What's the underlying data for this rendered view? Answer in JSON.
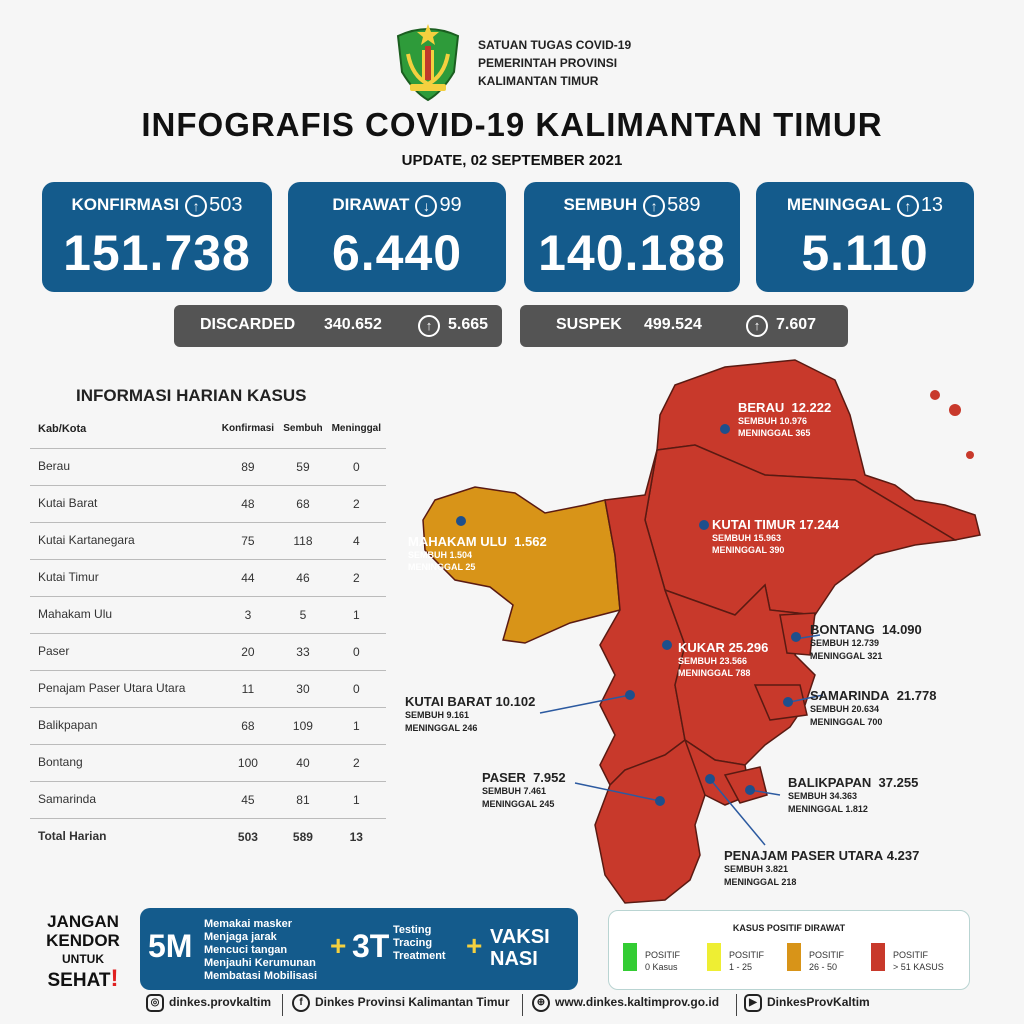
{
  "header": {
    "org_line1": "SATUAN TUGAS COVID-19",
    "org_line2": "PEMERINTAH PROVINSI",
    "org_line3": "KALIMANTAN TIMUR",
    "title": "INFOGRAFIS COVID-19 KALIMANTAN TIMUR",
    "update": "UPDATE, 02 SEPTEMBER 2021"
  },
  "stats": [
    {
      "label": "KONFIRMASI",
      "arrow": "up",
      "delta": "503",
      "value": "151.738"
    },
    {
      "label": "DIRAWAT",
      "arrow": "down",
      "delta": "99",
      "value": "6.440"
    },
    {
      "label": "SEMBUH",
      "arrow": "up",
      "delta": "589",
      "value": "140.188"
    },
    {
      "label": "MENINGGAL",
      "arrow": "up",
      "delta": "13",
      "value": "5.110"
    }
  ],
  "secondary": [
    {
      "label": "DISCARDED",
      "value": "340.652",
      "delta": "5.665"
    },
    {
      "label": "SUSPEK",
      "value": "499.524",
      "delta": "7.607"
    }
  ],
  "table": {
    "title": "INFORMASI HARIAN KASUS",
    "headers": [
      "Kab/Kota",
      "Konfirmasi",
      "Sembuh",
      "Meninggal"
    ],
    "rows": [
      [
        "Berau",
        "89",
        "59",
        "0"
      ],
      [
        "Kutai Barat",
        "48",
        "68",
        "2"
      ],
      [
        "Kutai Kartanegara",
        "75",
        "118",
        "4"
      ],
      [
        "Kutai Timur",
        "44",
        "46",
        "2"
      ],
      [
        "Mahakam Ulu",
        "3",
        "5",
        "1"
      ],
      [
        "Paser",
        "20",
        "33",
        "0"
      ],
      [
        "Penajam Paser Utara Utara",
        "11",
        "30",
        "0"
      ],
      [
        "Balikpapan",
        "68",
        "109",
        "1"
      ],
      [
        "Bontang",
        "100",
        "40",
        "2"
      ],
      [
        "Samarinda",
        "45",
        "81",
        "1"
      ]
    ],
    "total": [
      "Total Harian",
      "503",
      "589",
      "13"
    ]
  },
  "map": {
    "regions": [
      {
        "name": "BERAU",
        "total": "12.222",
        "sembuh": "SEMBUH 10.976",
        "meninggal": "MENINGGAL 365"
      },
      {
        "name": "MAHAKAM ULU",
        "total": "1.562",
        "sembuh": "SEMBUH 1.504",
        "meninggal": "MENINGGAL 25"
      },
      {
        "name": "KUTAI TIMUR",
        "total": "17.244",
        "sembuh": "SEMBUH 15.963",
        "meninggal": "MENINGGAL 390"
      },
      {
        "name": "BONTANG",
        "total": "14.090",
        "sembuh": "SEMBUH 12.739",
        "meninggal": "MENINGGAL 321"
      },
      {
        "name": "KUKAR",
        "total": "25.296",
        "sembuh": "SEMBUH 23.566",
        "meninggal": "MENINGGAL 788"
      },
      {
        "name": "KUTAI BARAT",
        "total": "10.102",
        "sembuh": "SEMBUH 9.161",
        "meninggal": "MENINGGAL 246"
      },
      {
        "name": "SAMARINDA",
        "total": "21.778",
        "sembuh": "SEMBUH 20.634",
        "meninggal": "MENINGGAL 700"
      },
      {
        "name": "PASER",
        "total": "7.952",
        "sembuh": "SEMBUH 7.461",
        "meninggal": "MENINGGAL 245"
      },
      {
        "name": "BALIKPAPAN",
        "total": "37.255",
        "sembuh": "SEMBUH 34.363",
        "meninggal": "MENINGGAL 1.812"
      },
      {
        "name": "PENAJAM PASER UTARA",
        "total": "4.237",
        "sembuh": "SEMBUH 3.821",
        "meninggal": "MENINGGAL 218"
      }
    ],
    "colors": {
      "red": "#c8392b",
      "orange": "#d89418",
      "green": "#33cc33",
      "yellow": "#eeee33"
    }
  },
  "banner": {
    "jangan": "JANGAN",
    "kendor": "KENDOR",
    "untuk": "UNTUK",
    "sehat": "SEHAT",
    "excl": "!",
    "five_m": "5M",
    "m_items": [
      "Memakai masker",
      "Menjaga jarak",
      "Mencuci tangan",
      "Menjauhi Kerumunan",
      "Membatasi Mobilisasi"
    ],
    "plus": "+",
    "three_t": "3T",
    "t_items": [
      "Testing",
      "Tracing",
      "Treatment"
    ],
    "vaksi1": "VAKSI",
    "vaksi2": "NASI"
  },
  "legend": {
    "title": "KASUS POSITIF DIRAWAT",
    "items": [
      {
        "l1": "POSITIF",
        "l2": "0 Kasus",
        "color": "#33cc33"
      },
      {
        "l1": "POSITIF",
        "l2": "1 - 25",
        "color": "#eeee33"
      },
      {
        "l1": "POSITIF",
        "l2": "26 - 50",
        "color": "#d89418"
      },
      {
        "l1": "POSITIF",
        "l2": "> 51 KASUS",
        "color": "#c8392b"
      }
    ]
  },
  "footer": {
    "instagram": "dinkes.provkaltim",
    "facebook": "Dinkes Provinsi Kalimantan Timur",
    "web": "www.dinkes.kaltimprov.go.id",
    "youtube": "DinkesProvKaltim"
  }
}
